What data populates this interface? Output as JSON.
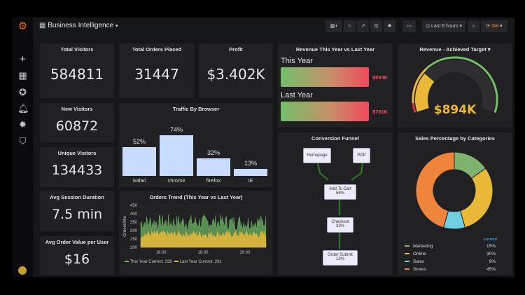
{
  "header": {
    "title": "Business Intelligence",
    "time_range": "Last 6 hours",
    "refresh": "1m"
  },
  "sidebar": {
    "icons": [
      "grafana-logo",
      "plus-icon",
      "dashboards-icon",
      "explore-icon",
      "bell-icon",
      "gear-icon",
      "shield-icon",
      "avatar"
    ]
  },
  "stats": {
    "total_visitors": {
      "title": "Total Visitors",
      "value": "584811"
    },
    "total_orders": {
      "title": "Total Orders Placed",
      "value": "31447"
    },
    "profit": {
      "title": "Profit",
      "value": "$3.402K"
    },
    "new_visitors": {
      "title": "New Visitors",
      "value": "60872"
    },
    "unique_visitors": {
      "title": "Unique Visitors",
      "value": "134433"
    },
    "avg_session": {
      "title": "Avg Session Duration",
      "value": "7.5 min"
    },
    "avg_order": {
      "title": "Avg Order Value per User",
      "value": "$16"
    }
  },
  "revenue": {
    "title": "Revenue This Year vs Last Year",
    "rows": [
      {
        "label": "This Year",
        "value": "$894K"
      },
      {
        "label": "Last Year",
        "value": "$761K"
      }
    ]
  },
  "gauge": {
    "title": "Revenue - Achieved Target",
    "value": "$894K",
    "fill_fraction": 0.27,
    "colors": {
      "low": "#e02f44",
      "mid": "#eab839",
      "high": "#73bf69"
    }
  },
  "funnel": {
    "title": "Conversion Funnel",
    "nodes": [
      {
        "label": "Homepage"
      },
      {
        "label": "PDP"
      },
      {
        "label": "Add To Cart",
        "pct": "59%"
      },
      {
        "label": "Checkout",
        "pct": "33%"
      },
      {
        "label": "Order Submit",
        "pct": "13%"
      }
    ]
  },
  "chart_data": [
    {
      "type": "bar",
      "title": "Traffic By Browser",
      "categories": [
        "Safari",
        "chrome",
        "firefox",
        "IE"
      ],
      "values": [
        52,
        74,
        32,
        13
      ],
      "labels": [
        "52%",
        "74%",
        "32%",
        "13%"
      ],
      "color": "#c8dcff"
    },
    {
      "type": "area",
      "title": "Orders Trend (This Year vs Last Year)",
      "ylabel": "Orders/Min",
      "ylim": [
        200,
        450
      ],
      "yticks": [
        "450",
        "400",
        "350",
        "300",
        "250",
        "200"
      ],
      "xticks": [
        "16:00",
        "18:00",
        "20:00"
      ],
      "grid": true,
      "legend": "bottom",
      "series": [
        {
          "name": "This Year",
          "current_label": "Current: 336",
          "current": 336,
          "range": [
            300,
            395
          ],
          "color": "#73bf69"
        },
        {
          "name": "Last Year",
          "current_label": "Current: 291",
          "current": 291,
          "range": [
            255,
            300
          ],
          "color": "#eab839"
        }
      ]
    },
    {
      "type": "pie",
      "title": "Sales Percentage by Categories",
      "legend_header": "current",
      "categories": [
        "Marketing",
        "Online",
        "Sales",
        "Stores"
      ],
      "values": [
        15,
        30,
        9,
        45
      ],
      "labels": [
        "15%",
        "30%",
        "9%",
        "45%"
      ],
      "colors": [
        "#7eb26d",
        "#eab839",
        "#6ed0e0",
        "#ef843c"
      ]
    }
  ]
}
